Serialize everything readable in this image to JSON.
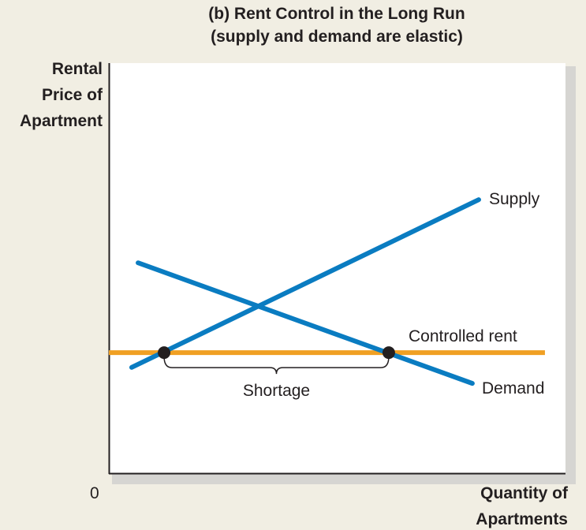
{
  "chart_data": {
    "type": "line",
    "title": [
      "(b) Rent Control in the Long Run",
      "(supply and demand are elastic)"
    ],
    "ylabel": [
      "Rental",
      "Price of",
      "Apartment"
    ],
    "xlabel": [
      "Quantity of",
      "Apartments"
    ],
    "origin_label": "0",
    "xlim": [
      0,
      100
    ],
    "ylim": [
      0,
      100
    ],
    "grid": false,
    "colors": {
      "curve": "#0a7cc1",
      "rent": "#f0a023",
      "point": "#231f20"
    },
    "series": [
      {
        "name": "Supply",
        "points": [
          [
            5.0,
            25.8
          ],
          [
            81.0,
            66.7
          ]
        ]
      },
      {
        "name": "Demand",
        "points": [
          [
            6.4,
            51.3
          ],
          [
            79.6,
            21.9
          ]
        ]
      },
      {
        "name": "Controlled rent",
        "points": [
          [
            0,
            29.4
          ],
          [
            95.5,
            29.4
          ]
        ]
      }
    ],
    "marked_points": [
      [
        12.1,
        29.4
      ],
      [
        61.3,
        29.4
      ]
    ],
    "annotation": {
      "text": "Shortage",
      "from_x": 12.1,
      "to_x": 61.3
    }
  }
}
